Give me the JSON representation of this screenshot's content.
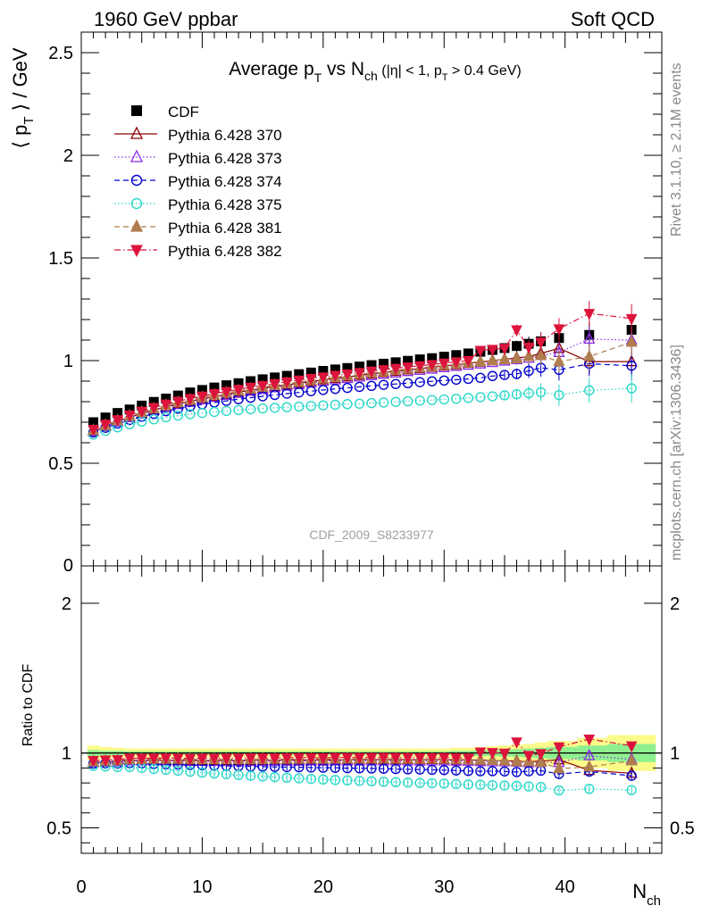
{
  "header": {
    "left": "1960 GeV ppbar",
    "right": "Soft QCD"
  },
  "side_labels": {
    "rivet": "Rivet 3.1.10, ≥ 2.1M events",
    "mcplots": "mcplots.cern.ch [arXiv:1306.3436]"
  },
  "watermark": "CDF_2009_S8233977",
  "chart_data": [
    {
      "type": "scatter",
      "title": "Average p_T vs N_ch (|η| < 1, p_T > 0.4 GeV)",
      "title_parts": {
        "pre": "Average p",
        "sub1": "T",
        "mid": " vs N",
        "sub2": "ch",
        "cut_pre": " (|η| < 1, p",
        "cut_sub": "T",
        "cut_post": " > 0.4 GeV)"
      },
      "ylabel": "⟨ p_T ⟩ / GeV",
      "ylabel_parts": {
        "pre": "⟨ p",
        "sub": "T",
        "post": " ⟩ / GeV"
      },
      "xlim": [
        0,
        48
      ],
      "ylim": [
        0,
        2.6
      ],
      "yticks": [
        0.5,
        1,
        1.5,
        2,
        2.5
      ],
      "ytick_labels": [
        "0.5",
        "1",
        "1.5",
        "2",
        "2.5"
      ],
      "x": [
        1,
        2,
        3,
        4,
        5,
        6,
        7,
        8,
        9,
        10,
        11,
        12,
        13,
        14,
        15,
        16,
        17,
        18,
        19,
        20,
        21,
        22,
        23,
        24,
        25,
        26,
        27,
        28,
        29,
        30,
        31,
        32,
        33,
        34,
        35,
        36,
        37,
        38,
        39.5,
        42,
        45.5
      ],
      "series": [
        {
          "name": "CDF",
          "color": "#000000",
          "marker": "square-filled",
          "line": "none",
          "values": [
            0.7,
            0.723,
            0.745,
            0.762,
            0.781,
            0.799,
            0.815,
            0.83,
            0.845,
            0.857,
            0.869,
            0.88,
            0.89,
            0.9,
            0.909,
            0.918,
            0.926,
            0.934,
            0.942,
            0.95,
            0.957,
            0.964,
            0.971,
            0.978,
            0.985,
            0.992,
            0.999,
            1.006,
            1.012,
            1.019,
            1.027,
            1.035,
            1.043,
            1.052,
            1.061,
            1.071,
            1.082,
            1.094,
            1.11,
            1.125,
            1.15
          ]
        },
        {
          "name": "Pythia 6.428 370",
          "color": "#8b0000",
          "marker": "triangle-up-open",
          "line": "solid",
          "values": [
            0.655,
            0.68,
            0.702,
            0.725,
            0.742,
            0.76,
            0.775,
            0.79,
            0.802,
            0.814,
            0.825,
            0.836,
            0.846,
            0.856,
            0.865,
            0.874,
            0.882,
            0.89,
            0.898,
            0.906,
            0.913,
            0.921,
            0.928,
            0.935,
            0.942,
            0.948,
            0.955,
            0.961,
            0.968,
            0.974,
            0.98,
            0.987,
            0.993,
            1.0,
            1.006,
            1.013,
            1.02,
            1.035,
            1.06,
            0.995,
            0.995
          ]
        },
        {
          "name": "Pythia 6.428 373",
          "color": "#8a2be2",
          "marker": "triangle-up-open",
          "line": "dotted",
          "values": [
            0.655,
            0.68,
            0.702,
            0.722,
            0.74,
            0.757,
            0.772,
            0.786,
            0.798,
            0.81,
            0.821,
            0.831,
            0.841,
            0.85,
            0.859,
            0.868,
            0.876,
            0.884,
            0.892,
            0.899,
            0.906,
            0.913,
            0.92,
            0.927,
            0.934,
            0.94,
            0.947,
            0.953,
            0.959,
            0.966,
            0.972,
            0.978,
            0.984,
            0.991,
            0.998,
            1.005,
            1.012,
            1.025,
            1.04,
            1.105,
            1.1
          ]
        },
        {
          "name": "Pythia 6.428 374",
          "color": "#0000cd",
          "marker": "circle-open",
          "line": "dashed",
          "values": [
            0.65,
            0.673,
            0.693,
            0.711,
            0.727,
            0.741,
            0.754,
            0.766,
            0.777,
            0.787,
            0.796,
            0.804,
            0.812,
            0.819,
            0.826,
            0.833,
            0.839,
            0.845,
            0.851,
            0.857,
            0.862,
            0.867,
            0.872,
            0.877,
            0.882,
            0.886,
            0.89,
            0.895,
            0.899,
            0.903,
            0.907,
            0.911,
            0.916,
            0.925,
            0.93,
            0.935,
            0.95,
            0.965,
            0.955,
            0.985,
            0.975
          ]
        },
        {
          "name": "Pythia 6.428 375",
          "color": "#2ad8c8",
          "marker": "circle-open",
          "line": "dotted",
          "values": [
            0.64,
            0.658,
            0.675,
            0.69,
            0.703,
            0.714,
            0.724,
            0.732,
            0.739,
            0.745,
            0.75,
            0.755,
            0.759,
            0.763,
            0.767,
            0.77,
            0.773,
            0.776,
            0.779,
            0.782,
            0.785,
            0.788,
            0.79,
            0.793,
            0.796,
            0.799,
            0.802,
            0.805,
            0.808,
            0.811,
            0.814,
            0.818,
            0.822,
            0.826,
            0.831,
            0.836,
            0.841,
            0.846,
            0.832,
            0.855,
            0.865
          ]
        },
        {
          "name": "Pythia 6.428 381",
          "color": "#b07d4f",
          "marker": "triangle-up-filled",
          "line": "dashed",
          "values": [
            0.66,
            0.685,
            0.708,
            0.73,
            0.748,
            0.766,
            0.782,
            0.796,
            0.809,
            0.821,
            0.832,
            0.843,
            0.853,
            0.862,
            0.871,
            0.88,
            0.888,
            0.896,
            0.904,
            0.911,
            0.919,
            0.926,
            0.933,
            0.94,
            0.946,
            0.953,
            0.959,
            0.965,
            0.971,
            0.977,
            0.983,
            0.989,
            0.995,
            1.0,
            1.005,
            1.01,
            1.02,
            1.025,
            0.995,
            1.02,
            1.09
          ]
        },
        {
          "name": "Pythia 6.428 382",
          "color": "#dc143c",
          "marker": "triangle-down-filled",
          "line": "dashdot",
          "values": [
            0.665,
            0.69,
            0.712,
            0.735,
            0.754,
            0.772,
            0.788,
            0.802,
            0.815,
            0.827,
            0.839,
            0.85,
            0.86,
            0.87,
            0.879,
            0.888,
            0.897,
            0.905,
            0.913,
            0.92,
            0.928,
            0.935,
            0.942,
            0.949,
            0.956,
            0.962,
            0.969,
            0.975,
            0.981,
            0.988,
            0.994,
            1.0,
            1.05,
            1.055,
            1.06,
            1.15,
            1.065,
            1.09,
            1.155,
            1.23,
            1.205
          ]
        }
      ]
    },
    {
      "type": "scatter",
      "title": "",
      "ylabel": "Ratio to CDF",
      "xlabel": "N_ch",
      "xlabel_parts": {
        "pre": "N",
        "sub": "ch"
      },
      "xlim": [
        0,
        48
      ],
      "ylim": [
        0.33,
        2.25
      ],
      "xticks": [
        0,
        10,
        20,
        30,
        40
      ],
      "xtick_labels": [
        "0",
        "10",
        "20",
        "30",
        "40"
      ],
      "yticks": [
        0.5,
        1,
        2
      ],
      "ytick_labels": [
        "0.5",
        "1",
        "2"
      ],
      "reference_line": 1,
      "uncertainty_band": {
        "colors": [
          "#fbfb8a",
          "#8ff08f"
        ],
        "x_edges": [
          0.5,
          1.5,
          2.5,
          3.5,
          4.5,
          5.5,
          6.5,
          7.5,
          8.5,
          9.5,
          10.5,
          11.5,
          12.5,
          13.5,
          14.5,
          15.5,
          16.5,
          17.5,
          18.5,
          19.5,
          20.5,
          21.5,
          22.5,
          23.5,
          24.5,
          25.5,
          26.5,
          27.5,
          28.5,
          29.5,
          30.5,
          31.5,
          32.5,
          33.5,
          34.5,
          35.5,
          36.5,
          37.5,
          38.5,
          41,
          43.5,
          47.5
        ],
        "outer_halfwidth": [
          0.05,
          0.04,
          0.035,
          0.03,
          0.03,
          0.03,
          0.03,
          0.03,
          0.03,
          0.03,
          0.03,
          0.03,
          0.03,
          0.03,
          0.03,
          0.03,
          0.03,
          0.03,
          0.03,
          0.03,
          0.03,
          0.03,
          0.03,
          0.03,
          0.03,
          0.03,
          0.03,
          0.03,
          0.03,
          0.03,
          0.035,
          0.035,
          0.04,
          0.045,
          0.05,
          0.055,
          0.06,
          0.07,
          0.08,
          0.1,
          0.12
        ],
        "inner_halfwidth": [
          0.02,
          0.015,
          0.015,
          0.012,
          0.012,
          0.012,
          0.012,
          0.012,
          0.012,
          0.012,
          0.012,
          0.012,
          0.012,
          0.012,
          0.012,
          0.012,
          0.012,
          0.012,
          0.012,
          0.012,
          0.012,
          0.012,
          0.012,
          0.012,
          0.012,
          0.012,
          0.012,
          0.012,
          0.012,
          0.012,
          0.015,
          0.015,
          0.02,
          0.02,
          0.025,
          0.025,
          0.03,
          0.035,
          0.04,
          0.05,
          0.06
        ]
      },
      "x": [
        1,
        2,
        3,
        4,
        5,
        6,
        7,
        8,
        9,
        10,
        11,
        12,
        13,
        14,
        15,
        16,
        17,
        18,
        19,
        20,
        21,
        22,
        23,
        24,
        25,
        26,
        27,
        28,
        29,
        30,
        31,
        32,
        33,
        34,
        35,
        36,
        37,
        38,
        39.5,
        42,
        45.5
      ],
      "series": [
        {
          "name": "Pythia 6.428 370",
          "values": [
            0.936,
            0.94,
            0.942,
            0.951,
            0.95,
            0.951,
            0.951,
            0.952,
            0.949,
            0.95,
            0.949,
            0.95,
            0.951,
            0.951,
            0.952,
            0.952,
            0.953,
            0.953,
            0.953,
            0.954,
            0.954,
            0.955,
            0.956,
            0.956,
            0.956,
            0.956,
            0.956,
            0.955,
            0.957,
            0.956,
            0.954,
            0.954,
            0.952,
            0.951,
            0.948,
            0.946,
            0.943,
            0.946,
            0.955,
            0.884,
            0.865
          ]
        },
        {
          "name": "Pythia 6.428 373",
          "values": [
            0.936,
            0.94,
            0.942,
            0.948,
            0.947,
            0.947,
            0.947,
            0.947,
            0.944,
            0.945,
            0.945,
            0.944,
            0.945,
            0.944,
            0.945,
            0.946,
            0.946,
            0.946,
            0.947,
            0.946,
            0.947,
            0.947,
            0.947,
            0.948,
            0.948,
            0.948,
            0.948,
            0.947,
            0.948,
            0.948,
            0.946,
            0.945,
            0.943,
            0.942,
            0.941,
            0.938,
            0.935,
            0.937,
            0.937,
            0.982,
            0.957
          ]
        },
        {
          "name": "Pythia 6.428 374",
          "values": [
            0.929,
            0.931,
            0.93,
            0.933,
            0.931,
            0.927,
            0.925,
            0.923,
            0.92,
            0.918,
            0.916,
            0.914,
            0.912,
            0.91,
            0.909,
            0.907,
            0.906,
            0.905,
            0.903,
            0.902,
            0.901,
            0.899,
            0.898,
            0.897,
            0.895,
            0.893,
            0.891,
            0.89,
            0.888,
            0.886,
            0.883,
            0.88,
            0.878,
            0.879,
            0.877,
            0.873,
            0.878,
            0.882,
            0.86,
            0.876,
            0.848
          ]
        },
        {
          "name": "Pythia 6.428 375",
          "values": [
            0.914,
            0.91,
            0.906,
            0.906,
            0.9,
            0.894,
            0.888,
            0.882,
            0.875,
            0.869,
            0.863,
            0.858,
            0.853,
            0.848,
            0.844,
            0.839,
            0.835,
            0.831,
            0.827,
            0.823,
            0.82,
            0.817,
            0.814,
            0.811,
            0.808,
            0.805,
            0.803,
            0.8,
            0.798,
            0.796,
            0.793,
            0.79,
            0.788,
            0.785,
            0.783,
            0.781,
            0.777,
            0.773,
            0.75,
            0.76,
            0.752
          ]
        },
        {
          "name": "Pythia 6.428 381",
          "values": [
            0.943,
            0.947,
            0.95,
            0.958,
            0.958,
            0.959,
            0.96,
            0.959,
            0.957,
            0.958,
            0.957,
            0.958,
            0.958,
            0.958,
            0.958,
            0.959,
            0.959,
            0.959,
            0.96,
            0.959,
            0.96,
            0.961,
            0.961,
            0.961,
            0.961,
            0.961,
            0.96,
            0.959,
            0.96,
            0.959,
            0.957,
            0.956,
            0.954,
            0.951,
            0.947,
            0.943,
            0.943,
            0.937,
            0.896,
            0.907,
            0.948
          ]
        },
        {
          "name": "Pythia 6.428 382",
          "values": [
            0.95,
            0.954,
            0.956,
            0.965,
            0.965,
            0.966,
            0.967,
            0.966,
            0.964,
            0.965,
            0.965,
            0.966,
            0.966,
            0.967,
            0.967,
            0.967,
            0.969,
            0.969,
            0.969,
            0.968,
            0.97,
            0.97,
            0.97,
            0.97,
            0.971,
            0.97,
            0.97,
            0.969,
            0.969,
            0.97,
            0.968,
            0.966,
            1.007,
            1.003,
            0.999,
            1.074,
            0.984,
            0.996,
            1.041,
            1.093,
            1.048
          ]
        }
      ]
    }
  ]
}
